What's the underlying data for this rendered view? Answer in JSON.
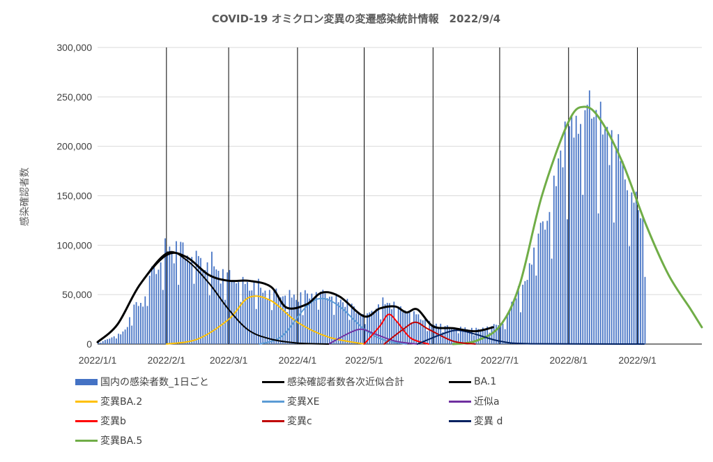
{
  "chart_data": {
    "type": "bar+line",
    "title": "COVID-19 オミクロン変異の変遷感染統計情報　2022/9/4",
    "ylabel": "感染確認者数",
    "xlabel": "",
    "ylim": [
      0,
      300000
    ],
    "yticks": [
      "0",
      "50,000",
      "100,000",
      "150,000",
      "200,000",
      "250,000",
      "300,000"
    ],
    "x_range": [
      "2022-01-01",
      "2022-09-30"
    ],
    "x_tick_labels": [
      "2022/1/1",
      "2022/2/1",
      "2022/3/1",
      "2022/4/1",
      "2022/5/1",
      "2022/6/1",
      "2022/7/1",
      "2022/8/1",
      "2022/9/1"
    ],
    "vertical_gridlines_at": [
      "2022-02-01",
      "2022-03-01",
      "2022-04-01",
      "2022-05-01",
      "2022-06-01",
      "2022-07-01",
      "2022-08-01",
      "2022-09-01"
    ],
    "horizontal_grid": true,
    "legend_position": "bottom",
    "bars": {
      "name": "国内の感染者数_1日ごと",
      "color": "#4472C4",
      "start_date": "2022-01-01",
      "end_date": "2022-09-04",
      "anchor_dates": [
        "2022-01-01",
        "2022-01-10",
        "2022-01-20",
        "2022-01-27",
        "2022-02-03",
        "2022-02-10",
        "2022-02-20",
        "2022-03-01",
        "2022-03-10",
        "2022-03-20",
        "2022-04-01",
        "2022-04-12",
        "2022-04-20",
        "2022-05-01",
        "2022-05-10",
        "2022-05-20",
        "2022-06-01",
        "2022-06-10",
        "2022-06-20",
        "2022-07-01",
        "2022-07-10",
        "2022-07-20",
        "2022-08-01",
        "2022-08-10",
        "2022-08-20",
        "2022-09-01",
        "2022-09-04"
      ],
      "anchor_values": [
        2000,
        9000,
        42000,
        80000,
        98000,
        92000,
        80000,
        68000,
        60000,
        52000,
        48000,
        52000,
        44000,
        30000,
        42000,
        34000,
        20000,
        17000,
        15000,
        20000,
        55000,
        120000,
        215000,
        240000,
        205000,
        140000,
        120000
      ]
    },
    "series": [
      {
        "name": "感染確認者数各次近似合計",
        "color": "#000000",
        "width": 3,
        "x": [
          "2022-01-01",
          "2022-01-10",
          "2022-01-20",
          "2022-02-01",
          "2022-02-10",
          "2022-02-20",
          "2022-03-01",
          "2022-03-10",
          "2022-03-20",
          "2022-03-27",
          "2022-04-05",
          "2022-04-12",
          "2022-04-20",
          "2022-05-01",
          "2022-05-08",
          "2022-05-15",
          "2022-05-20",
          "2022-05-25",
          "2022-06-01",
          "2022-06-10",
          "2022-06-20",
          "2022-06-28"
        ],
        "y": [
          2000,
          20000,
          60000,
          90000,
          88000,
          70000,
          64000,
          64000,
          58000,
          37000,
          40000,
          52000,
          48000,
          28000,
          36000,
          38000,
          32000,
          35000,
          18000,
          16000,
          13000,
          17000
        ]
      },
      {
        "name": "BA.1",
        "color": "#000000",
        "width": 2,
        "x": [
          "2022-01-01",
          "2022-01-10",
          "2022-01-20",
          "2022-02-01",
          "2022-02-10",
          "2022-02-20",
          "2022-03-01",
          "2022-03-10",
          "2022-03-20",
          "2022-04-01",
          "2022-04-15"
        ],
        "y": [
          2000,
          20000,
          60000,
          92000,
          85000,
          62000,
          35000,
          14000,
          5000,
          1000,
          0
        ]
      },
      {
        "name": "変異BA.2",
        "color": "#FFC000",
        "width": 2,
        "x": [
          "2022-02-01",
          "2022-02-15",
          "2022-03-01",
          "2022-03-10",
          "2022-03-20",
          "2022-04-01",
          "2022-04-15",
          "2022-05-01"
        ],
        "y": [
          0,
          5000,
          25000,
          47000,
          44000,
          22000,
          7000,
          0
        ]
      },
      {
        "name": "変異XE",
        "color": "#5B9BD5",
        "width": 2,
        "x": [
          "2022-03-15",
          "2022-03-25",
          "2022-04-05",
          "2022-04-12",
          "2022-04-20",
          "2022-05-01",
          "2022-05-10",
          "2022-05-20"
        ],
        "y": [
          0,
          8000,
          38000,
          46000,
          38000,
          15000,
          4000,
          0
        ]
      },
      {
        "name": "近似a",
        "color": "#7030A0",
        "width": 2,
        "x": [
          "2022-04-15",
          "2022-04-25",
          "2022-04-30",
          "2022-05-05",
          "2022-05-15",
          "2022-05-25"
        ],
        "y": [
          0,
          12000,
          15000,
          11000,
          3000,
          0
        ]
      },
      {
        "name": "変異b",
        "color": "#FF0000",
        "width": 2,
        "x": [
          "2022-05-01",
          "2022-05-08",
          "2022-05-12",
          "2022-05-16",
          "2022-05-22",
          "2022-05-30"
        ],
        "y": [
          0,
          18000,
          30000,
          22000,
          6000,
          0
        ]
      },
      {
        "name": "変異c",
        "color": "#C00000",
        "width": 2,
        "x": [
          "2022-05-10",
          "2022-05-18",
          "2022-05-24",
          "2022-05-30",
          "2022-06-10",
          "2022-06-20"
        ],
        "y": [
          0,
          14000,
          22000,
          15000,
          3000,
          0
        ]
      },
      {
        "name": "変異 d",
        "color": "#002060",
        "width": 2,
        "x": [
          "2022-05-25",
          "2022-06-05",
          "2022-06-12",
          "2022-06-20",
          "2022-07-01",
          "2022-07-15",
          "2022-09-04"
        ],
        "y": [
          0,
          10000,
          14000,
          10000,
          3000,
          300,
          0
        ]
      },
      {
        "name": "変異BA.5",
        "color": "#70AD47",
        "width": 3,
        "x": [
          "2022-06-10",
          "2022-06-20",
          "2022-07-01",
          "2022-07-10",
          "2022-07-20",
          "2022-08-01",
          "2022-08-08",
          "2022-08-15",
          "2022-08-25",
          "2022-09-05",
          "2022-09-15",
          "2022-09-25",
          "2022-09-30"
        ],
        "y": [
          0,
          3000,
          18000,
          60000,
          150000,
          225000,
          240000,
          228000,
          185000,
          120000,
          70000,
          35000,
          17000
        ]
      }
    ]
  }
}
